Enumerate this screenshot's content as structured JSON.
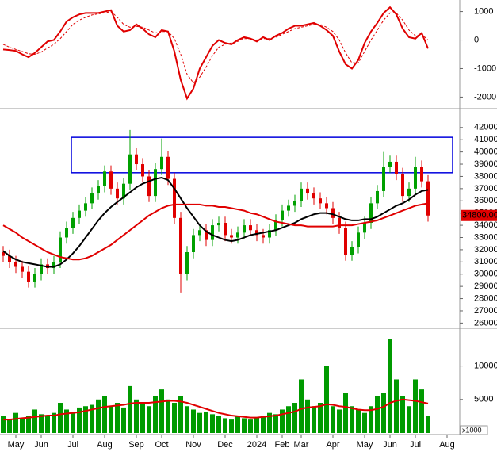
{
  "chart_data": [
    {
      "type": "line",
      "ylim": [
        -2350,
        1350
      ],
      "yticks": [
        1000,
        0,
        -1000,
        -2000
      ],
      "reference_line": 0,
      "series": [
        {
          "color": "#e00000",
          "style": "solid",
          "values": [
            -330,
            -350,
            -380,
            -500,
            -600,
            -450,
            -250,
            -50,
            0,
            300,
            650,
            800,
            900,
            950,
            950,
            950,
            1000,
            1050,
            500,
            300,
            350,
            550,
            400,
            200,
            100,
            350,
            300,
            -400,
            -1400,
            -2050,
            -1700,
            -1000,
            -600,
            -200,
            0,
            -100,
            -150,
            0,
            100,
            50,
            -50,
            100,
            0,
            150,
            250,
            400,
            500,
            500,
            550,
            600,
            500,
            350,
            150,
            -400,
            -850,
            -1000,
            -700,
            -100,
            300,
            600,
            950,
            1150,
            900,
            400,
            100,
            50,
            250,
            -300,
            null,
            null,
            null
          ]
        },
        {
          "color": "#e00000",
          "style": "dashed",
          "values": [
            -150,
            -250,
            -330,
            -400,
            -480,
            -500,
            -420,
            -280,
            -150,
            50,
            300,
            550,
            700,
            800,
            880,
            920,
            950,
            1000,
            800,
            550,
            450,
            480,
            450,
            350,
            250,
            300,
            300,
            50,
            -500,
            -1200,
            -1500,
            -1300,
            -950,
            -550,
            -250,
            -150,
            -100,
            -50,
            50,
            50,
            0,
            50,
            50,
            100,
            200,
            300,
            400,
            450,
            500,
            550,
            550,
            450,
            300,
            0,
            -450,
            -800,
            -800,
            -400,
            0,
            350,
            700,
            950,
            950,
            700,
            350,
            150,
            200,
            0,
            null,
            null,
            null
          ]
        }
      ]
    },
    {
      "type": "candlestick",
      "ylim": [
        25700,
        43350
      ],
      "yticks": [
        26000,
        27000,
        28000,
        29000,
        30000,
        31000,
        32000,
        33000,
        34000,
        35000,
        36000,
        37000,
        38000,
        39000,
        40000,
        41000,
        42000
      ],
      "up_color": "#00a000",
      "down_color": "#e00000",
      "highlight_range": [
        38300,
        41200
      ],
      "highlight_color": "#0000dd",
      "last_price": {
        "value": 34800,
        "label": "34800.00"
      },
      "open": [
        31800,
        31500,
        31000,
        30600,
        30200,
        29400,
        30000,
        30800,
        30500,
        31000,
        33000,
        33800,
        34600,
        35200,
        35800,
        36600,
        37200,
        38400,
        37000,
        36200,
        37400,
        39800,
        39000,
        38000,
        36400,
        38600,
        39600,
        37800,
        34600,
        30000,
        31800,
        33200,
        33600,
        32800,
        34000,
        34200,
        33200,
        33000,
        33400,
        34000,
        33600,
        33200,
        33000,
        33600,
        34400,
        35200,
        35600,
        36000,
        37000,
        36600,
        36200,
        35800,
        35400,
        34600,
        33800,
        31600,
        32200,
        33400,
        34200,
        35800,
        36800,
        38800,
        39200,
        38200,
        36400,
        37000,
        38800,
        37600,
        null,
        null,
        null
      ],
      "high": [
        32300,
        32000,
        31500,
        31100,
        30700,
        30500,
        31300,
        31300,
        31500,
        33500,
        34300,
        35100,
        35700,
        36300,
        37100,
        37700,
        38900,
        38900,
        37500,
        37900,
        41800,
        40300,
        39500,
        38500,
        39100,
        41100,
        40100,
        38300,
        35100,
        32300,
        33700,
        34100,
        34100,
        34500,
        34700,
        34700,
        33700,
        33900,
        34500,
        34500,
        34100,
        33700,
        34100,
        34900,
        35700,
        36100,
        36500,
        37500,
        37500,
        37100,
        36700,
        36300,
        35900,
        35100,
        34300,
        32700,
        33900,
        34700,
        36300,
        37300,
        40000,
        39700,
        39700,
        38700,
        37500,
        39600,
        39300,
        38100,
        null,
        null,
        null
      ],
      "low": [
        31000,
        30500,
        30100,
        29700,
        28900,
        28900,
        29500,
        30000,
        30000,
        30500,
        32500,
        33300,
        34100,
        34700,
        35300,
        36100,
        36700,
        36500,
        35700,
        35700,
        36900,
        38500,
        37500,
        35900,
        35900,
        38100,
        37300,
        34100,
        28500,
        29500,
        31300,
        32700,
        32300,
        32300,
        33500,
        32700,
        32500,
        32500,
        32900,
        33100,
        32700,
        32500,
        32500,
        33100,
        33900,
        34700,
        35100,
        35500,
        36100,
        35700,
        35300,
        34900,
        34100,
        33300,
        31100,
        31100,
        31700,
        32900,
        33700,
        35300,
        36300,
        38300,
        37700,
        35900,
        35900,
        36500,
        37100,
        34300,
        null,
        null,
        null
      ],
      "close": [
        31500,
        31000,
        30600,
        30200,
        29400,
        30000,
        30800,
        30500,
        31000,
        33000,
        33800,
        34600,
        35200,
        35800,
        36600,
        37200,
        38400,
        37000,
        36200,
        37400,
        39800,
        39000,
        38000,
        36400,
        38600,
        39600,
        37800,
        34600,
        30000,
        31800,
        33200,
        33600,
        32800,
        34000,
        34200,
        33200,
        33000,
        33400,
        34000,
        33600,
        33200,
        33000,
        33600,
        34400,
        35200,
        35600,
        36000,
        37000,
        36600,
        36200,
        35800,
        35400,
        34600,
        33800,
        31600,
        32200,
        33400,
        34200,
        35800,
        36800,
        38800,
        39200,
        38200,
        36400,
        37000,
        38800,
        37600,
        34800,
        null,
        null,
        null
      ],
      "series": [
        {
          "color": "#000000",
          "values": [
            31900,
            31500,
            31200,
            31000,
            30900,
            30800,
            30700,
            30600,
            30600,
            30800,
            31200,
            31700,
            32300,
            33000,
            33700,
            34400,
            35000,
            35500,
            35900,
            36300,
            36700,
            37100,
            37400,
            37600,
            37800,
            37900,
            37700,
            37000,
            36200,
            35400,
            34700,
            34000,
            33500,
            33200,
            33000,
            32800,
            32700,
            32800,
            33000,
            33200,
            33300,
            33400,
            33500,
            33600,
            33800,
            34000,
            34200,
            34500,
            34700,
            34900,
            35000,
            35000,
            34900,
            34700,
            34500,
            34400,
            34400,
            34500,
            34500,
            34700,
            35000,
            35300,
            35600,
            35800,
            36100,
            36500,
            36800,
            36900,
            null,
            null,
            null
          ]
        },
        {
          "color": "#e00000",
          "values": [
            34000,
            33700,
            33400,
            33000,
            32700,
            32400,
            32100,
            31800,
            31600,
            31400,
            31300,
            31200,
            31200,
            31300,
            31500,
            31800,
            32100,
            32400,
            32800,
            33200,
            33600,
            34000,
            34400,
            34800,
            35100,
            35400,
            35600,
            35700,
            35700,
            35700,
            35700,
            35700,
            35600,
            35600,
            35500,
            35500,
            35400,
            35300,
            35200,
            35000,
            34900,
            34700,
            34500,
            34300,
            34200,
            34100,
            34000,
            34000,
            33900,
            33900,
            33900,
            33900,
            33900,
            34000,
            34000,
            34000,
            34100,
            34200,
            34300,
            34400,
            34600,
            34800,
            35000,
            35200,
            35400,
            35600,
            35700,
            35800,
            null,
            null,
            null
          ]
        }
      ]
    },
    {
      "type": "bar",
      "ylim": [
        0,
        15400
      ],
      "yticks": [
        5000,
        10000
      ],
      "unit_label": "x1000",
      "color": "#009a00",
      "categories": [
        null,
        null,
        "May",
        null,
        null,
        null,
        "Jun",
        null,
        null,
        null,
        null,
        "Jul",
        null,
        null,
        null,
        null,
        "Aug",
        null,
        null,
        null,
        null,
        "Sep",
        null,
        null,
        null,
        "Oct",
        null,
        null,
        null,
        null,
        "Nov",
        null,
        null,
        null,
        null,
        "Dec",
        null,
        null,
        null,
        null,
        "2024",
        null,
        null,
        null,
        "Feb",
        null,
        null,
        "Mar",
        null,
        null,
        null,
        null,
        "Apr",
        null,
        null,
        null,
        null,
        "May",
        null,
        null,
        null,
        "Jun",
        null,
        null,
        null,
        "Jul",
        null,
        null,
        null,
        null,
        "Aug"
      ],
      "values": [
        2500,
        2000,
        3000,
        2200,
        2500,
        3500,
        2800,
        2500,
        3000,
        4500,
        3500,
        3000,
        3800,
        4000,
        4200,
        5000,
        5500,
        4000,
        4500,
        3800,
        7000,
        5000,
        4500,
        4000,
        5500,
        6500,
        5000,
        4500,
        5500,
        4000,
        3500,
        3000,
        3200,
        2800,
        2500,
        2200,
        2000,
        2500,
        2200,
        2000,
        2300,
        2500,
        3000,
        2800,
        3500,
        4000,
        4500,
        8000,
        5000,
        4000,
        4500,
        10000,
        4000,
        3500,
        6000,
        4000,
        3500,
        3000,
        4000,
        5500,
        6000,
        14000,
        8000,
        5500,
        4000,
        8000,
        6500,
        2500,
        null,
        null,
        null
      ],
      "series": [
        {
          "color": "#e00000",
          "values": [
            2000,
            2000,
            2100,
            2200,
            2300,
            2400,
            2500,
            2600,
            2600,
            2800,
            2900,
            3000,
            3100,
            3300,
            3500,
            3700,
            3900,
            4000,
            4100,
            4200,
            4400,
            4500,
            4500,
            4500,
            4600,
            4700,
            4800,
            4800,
            4700,
            4500,
            4200,
            3900,
            3600,
            3300,
            3000,
            2800,
            2600,
            2500,
            2400,
            2300,
            2300,
            2400,
            2500,
            2600,
            2800,
            3000,
            3200,
            3600,
            3800,
            3900,
            4000,
            4300,
            4200,
            4000,
            3900,
            3700,
            3500,
            3400,
            3400,
            3600,
            3900,
            4500,
            4800,
            5000,
            4900,
            4800,
            4600,
            4400,
            null,
            null,
            null
          ]
        }
      ]
    }
  ]
}
